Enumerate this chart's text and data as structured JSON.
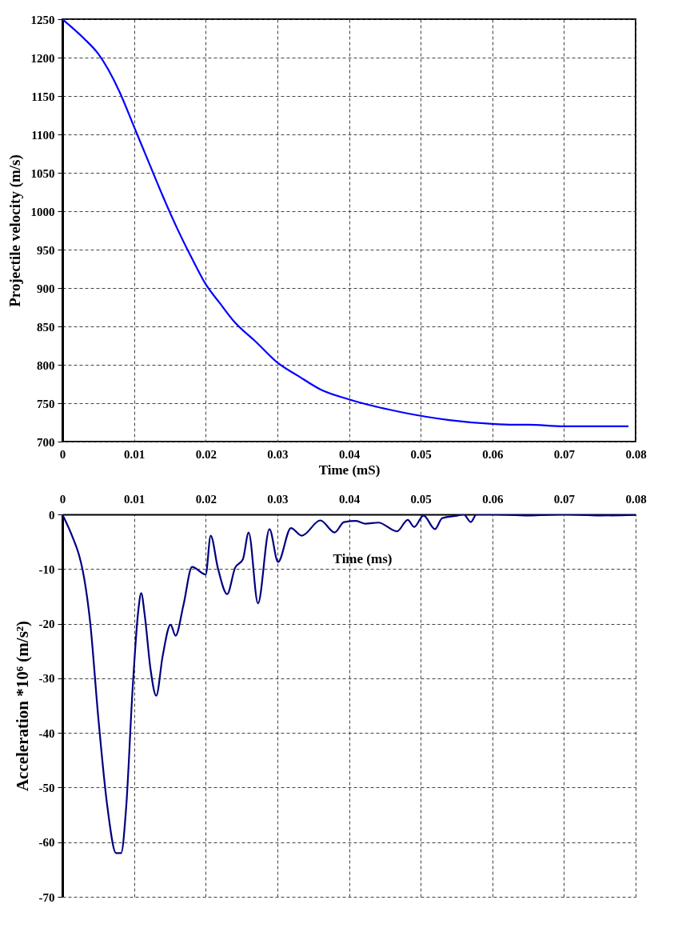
{
  "chart_data": [
    {
      "type": "line",
      "xlabel": "Time (mS)",
      "ylabel": "Projectile velocity (m/s)",
      "xlim": [
        0,
        0.08
      ],
      "ylim": [
        700,
        1250
      ],
      "xticks": [
        0,
        0.01,
        0.02,
        0.03,
        0.04,
        0.05,
        0.06,
        0.07,
        0.08
      ],
      "yticks": [
        700,
        750,
        800,
        850,
        900,
        950,
        1000,
        1050,
        1100,
        1150,
        1200,
        1250
      ],
      "grid": true,
      "line_style": "solid",
      "series": [
        {
          "color": "#0000ff",
          "x": [
            0,
            0.003,
            0.005,
            0.008,
            0.01,
            0.012,
            0.014,
            0.016,
            0.018,
            0.02,
            0.022,
            0.024,
            0.027,
            0.03,
            0.033,
            0.036,
            0.04,
            0.044,
            0.048,
            0.054,
            0.06,
            0.063,
            0.065,
            0.07,
            0.079
          ],
          "values": [
            1250,
            1225,
            1205,
            1155,
            1110,
            1065,
            1020,
            978,
            940,
            905,
            880,
            856,
            830,
            803,
            785,
            768,
            755,
            745,
            737,
            728,
            723,
            722,
            722,
            720,
            720
          ]
        }
      ]
    },
    {
      "type": "line",
      "xlabel": "Time (ms)",
      "ylabel": "Acceleration *10⁶ (m/s²)",
      "xlim": [
        0,
        0.08
      ],
      "ylim": [
        -70,
        0
      ],
      "xticks": [
        0,
        0.01,
        0.02,
        0.03,
        0.04,
        0.05,
        0.06,
        0.07,
        0.08
      ],
      "yticks": [
        -70,
        -60,
        -50,
        -40,
        -30,
        -20,
        -10,
        0
      ],
      "grid": true,
      "line_style": "solid",
      "series": [
        {
          "color": "#000080",
          "x": [
            0,
            0.0015,
            0.0024,
            0.0028,
            0.0039,
            0.005,
            0.0063,
            0.0075,
            0.0082,
            0.0089,
            0.0098,
            0.0106,
            0.011,
            0.0115,
            0.0123,
            0.0131,
            0.014,
            0.0151,
            0.0158,
            0.0169,
            0.0181,
            0.02,
            0.0207,
            0.0217,
            0.023,
            0.0241,
            0.0252,
            0.026,
            0.0273,
            0.0289,
            0.0301,
            0.0319,
            0.0334,
            0.036,
            0.038,
            0.0393,
            0.041,
            0.0423,
            0.0441,
            0.0467,
            0.0482,
            0.0491,
            0.0504,
            0.052,
            0.053,
            0.0552,
            0.056,
            0.057,
            0.0578,
            0.06,
            0.065,
            0.07,
            0.075,
            0.08
          ],
          "values": [
            0,
            -4.4,
            -7.8,
            -10,
            -20,
            -37,
            -53.7,
            -62,
            -62,
            -53.7,
            -32,
            -17.6,
            -14.4,
            -18.5,
            -28.3,
            -33.2,
            -25.9,
            -20.2,
            -22.2,
            -16.6,
            -9.6,
            -11,
            -3.9,
            -9.8,
            -14.6,
            -9.8,
            -8.2,
            -3.3,
            -16.3,
            -2.7,
            -8.7,
            -2.5,
            -3.9,
            -1.1,
            -3.3,
            -1.4,
            -1.2,
            -1.7,
            -1.5,
            -3.1,
            -1,
            -2.3,
            -0.2,
            -2.7,
            -0.7,
            -0.2,
            0,
            -1.4,
            0,
            0,
            -0.2,
            0,
            -0.2,
            -0.1
          ]
        }
      ]
    }
  ]
}
